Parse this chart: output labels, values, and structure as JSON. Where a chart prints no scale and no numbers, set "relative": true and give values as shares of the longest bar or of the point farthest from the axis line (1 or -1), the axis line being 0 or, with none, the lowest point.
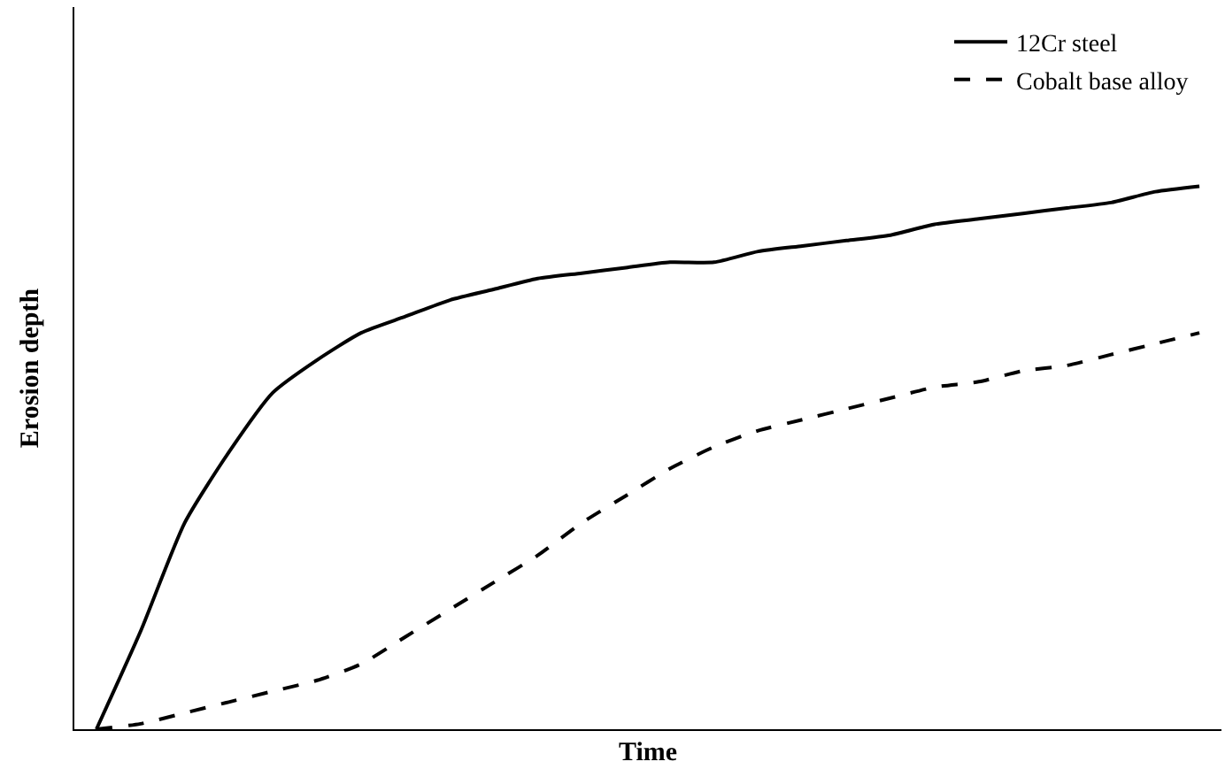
{
  "chart_data": {
    "type": "line",
    "relative": true,
    "xlabel": "Time",
    "ylabel": "Erosion depth",
    "legend": "top right",
    "marker": "none",
    "categories": [
      null,
      null,
      null,
      null,
      null,
      null,
      null,
      null,
      null,
      null,
      null,
      null,
      null,
      null,
      null,
      null,
      null,
      null,
      null,
      null,
      null,
      null,
      null,
      null,
      null,
      null
    ],
    "series": [
      {
        "name": "12Cr steel",
        "color": "#000000",
        "line_style": "solid",
        "values": [
          0,
          0.18,
          0.38,
          0.51,
          0.62,
          0.68,
          0.73,
          0.76,
          0.79,
          0.81,
          0.83,
          0.84,
          0.85,
          0.86,
          0.86,
          0.88,
          0.89,
          0.9,
          0.91,
          0.93,
          0.94,
          0.95,
          0.96,
          0.97,
          0.99,
          1
        ]
      },
      {
        "name": "Cobalt base alloy",
        "color": "#000000",
        "line_style": "dashed",
        "values": [
          0,
          0.01,
          0.03,
          0.05,
          0.07,
          0.09,
          0.12,
          0.17,
          0.22,
          0.27,
          0.32,
          0.38,
          0.43,
          0.48,
          0.52,
          0.55,
          0.57,
          0.59,
          0.61,
          0.63,
          0.64,
          0.66,
          0.67,
          0.69,
          0.71,
          0.73
        ]
      }
    ]
  }
}
